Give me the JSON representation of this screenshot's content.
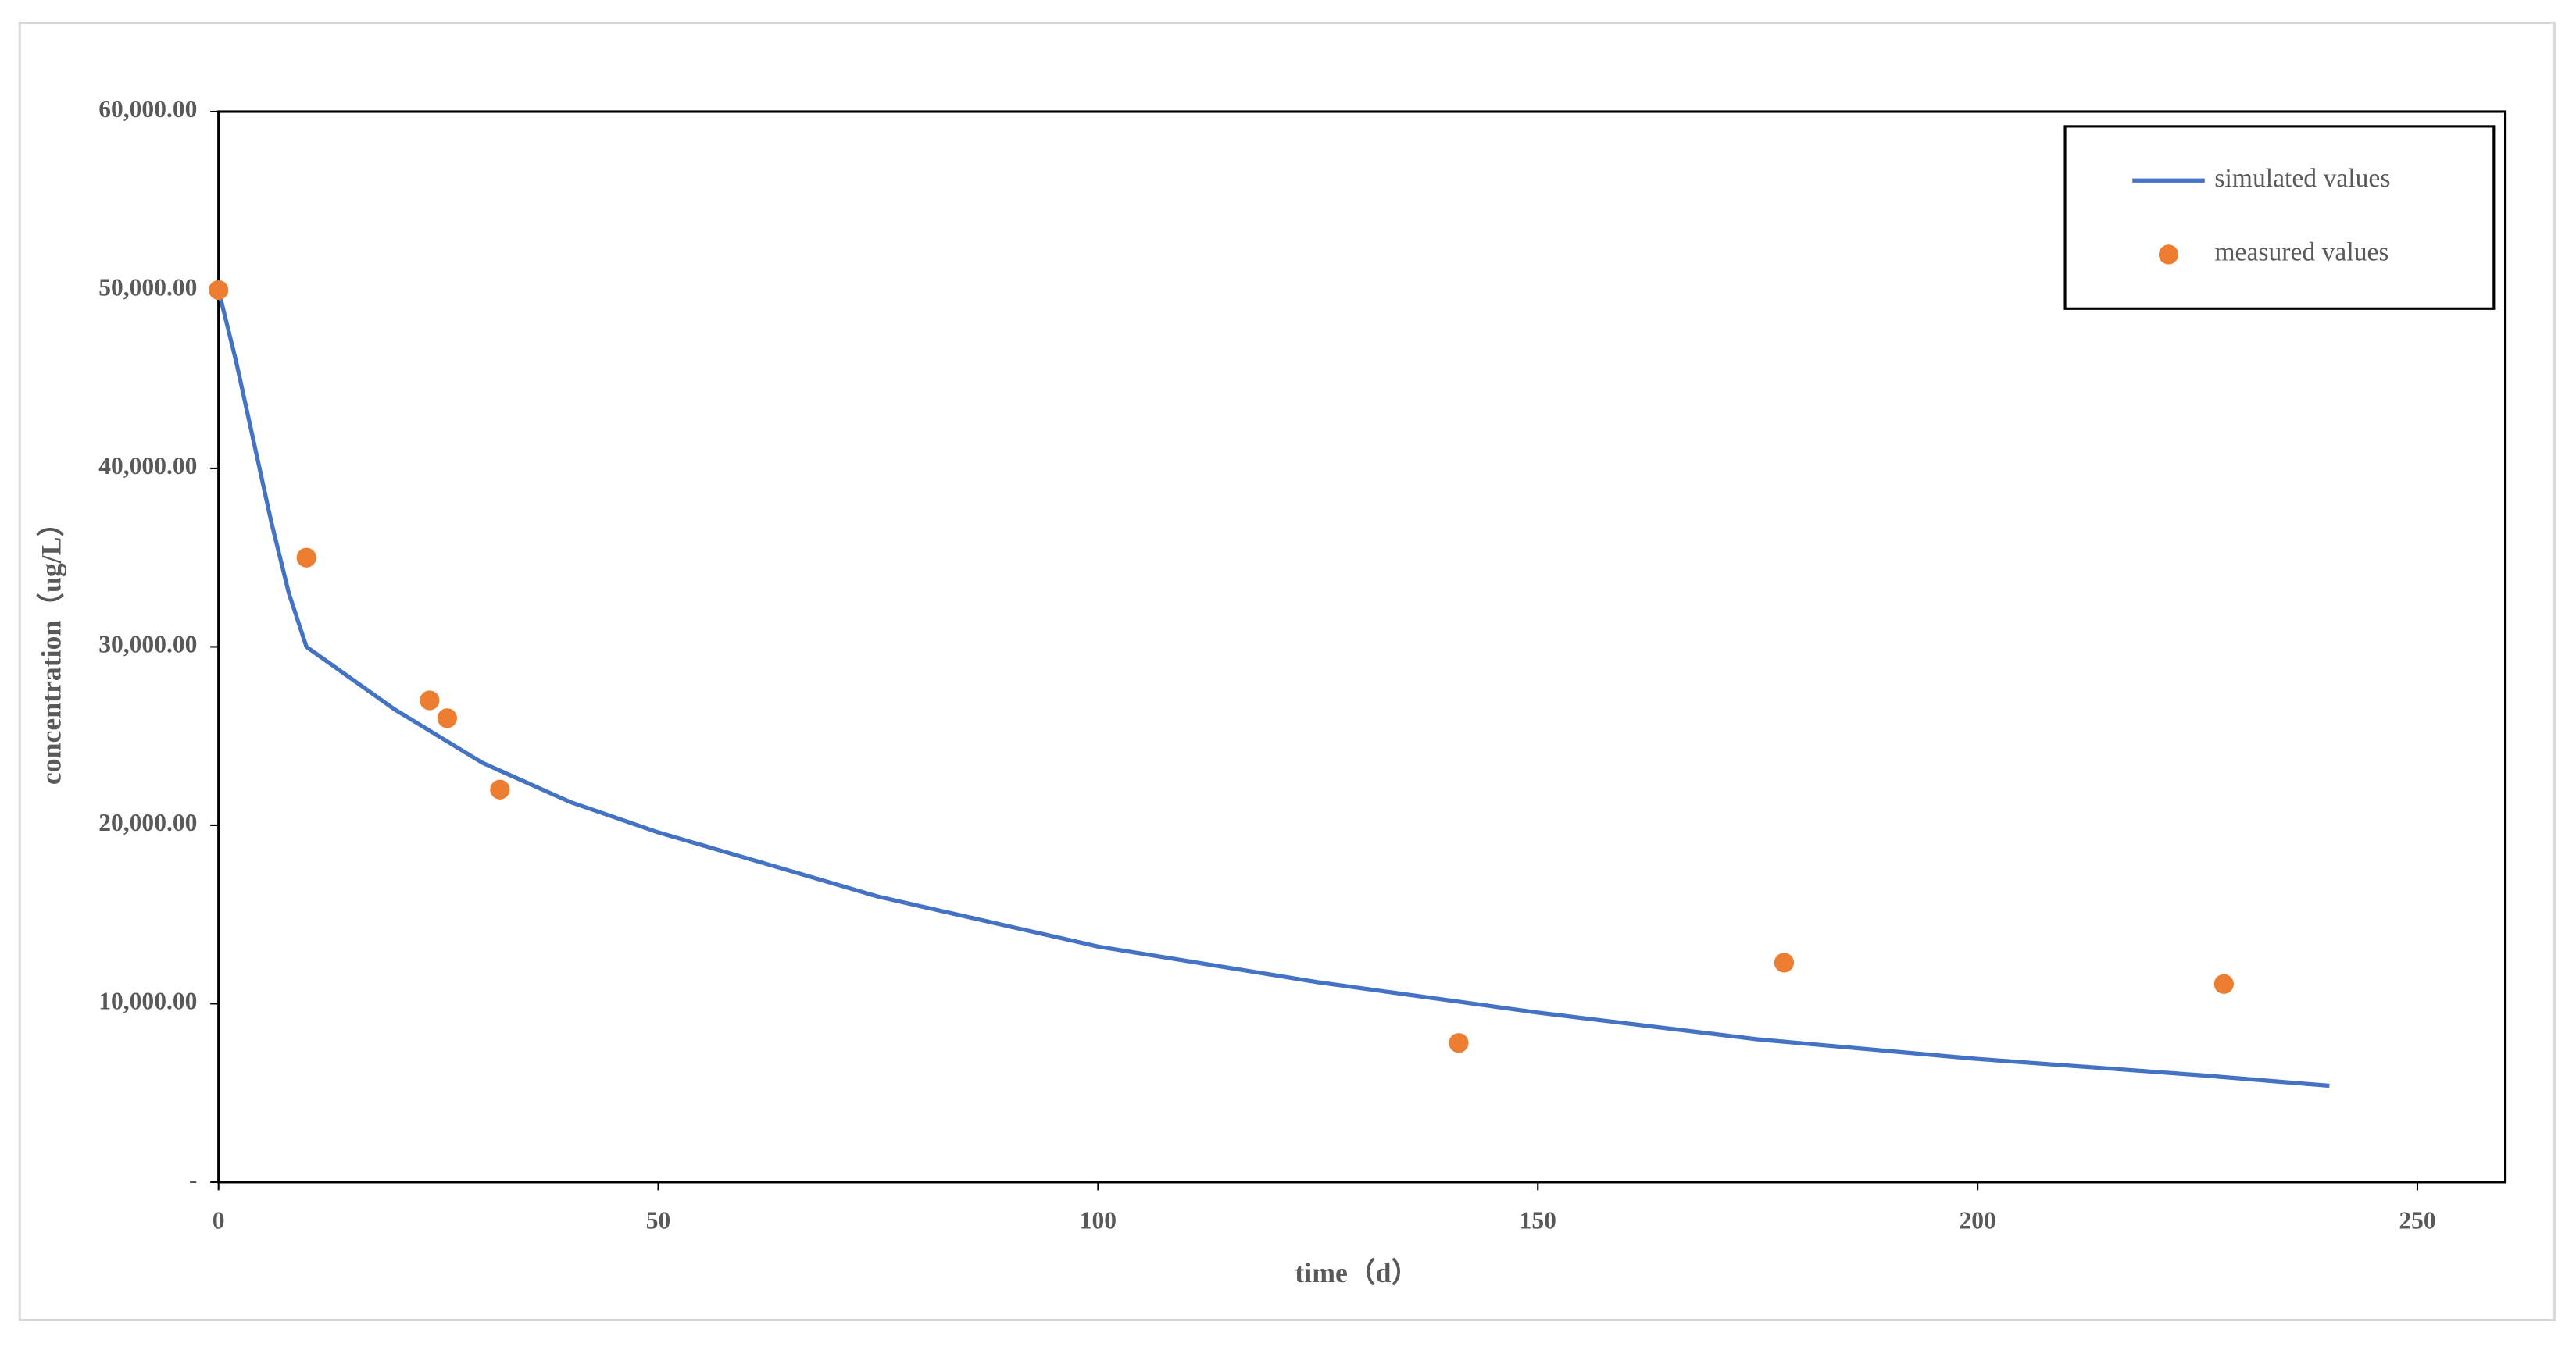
{
  "chart_data": {
    "type": "line",
    "xlabel": "time（d）",
    "ylabel": "concentration（ug/L）",
    "xlim": [
      0,
      260
    ],
    "xticks": [
      0,
      50,
      100,
      150,
      200,
      250
    ],
    "ylim": [
      0,
      60000
    ],
    "yticks": [
      {
        "value": 0,
        "label": "-"
      },
      {
        "value": 10000,
        "label": "10,000.00"
      },
      {
        "value": 20000,
        "label": "20,000.00"
      },
      {
        "value": 30000,
        "label": "30,000.00"
      },
      {
        "value": 40000,
        "label": "40,000.00"
      },
      {
        "value": 50000,
        "label": "50,000.00"
      },
      {
        "value": 60000,
        "label": "60,000.00"
      }
    ],
    "legend": "upper right",
    "series": [
      {
        "name": "simulated values",
        "type": "line",
        "color": "#4472c4",
        "x": [
          0,
          2,
          4,
          6,
          8,
          10,
          20,
          30,
          40,
          50,
          75,
          100,
          125,
          150,
          175,
          200,
          225,
          240
        ],
        "values": [
          50000,
          46000,
          41500,
          37000,
          33000,
          30000,
          26500,
          23500,
          21300,
          19600,
          16000,
          13200,
          11200,
          9500,
          8000,
          6900,
          6000,
          5400
        ]
      },
      {
        "name": "measured values",
        "type": "scatter",
        "color": "#ed7d31",
        "x": [
          0,
          10,
          24,
          26,
          32,
          141,
          178,
          228
        ],
        "values": [
          50000,
          35000,
          27000,
          26000,
          22000,
          7800,
          12300,
          11100
        ]
      }
    ]
  }
}
